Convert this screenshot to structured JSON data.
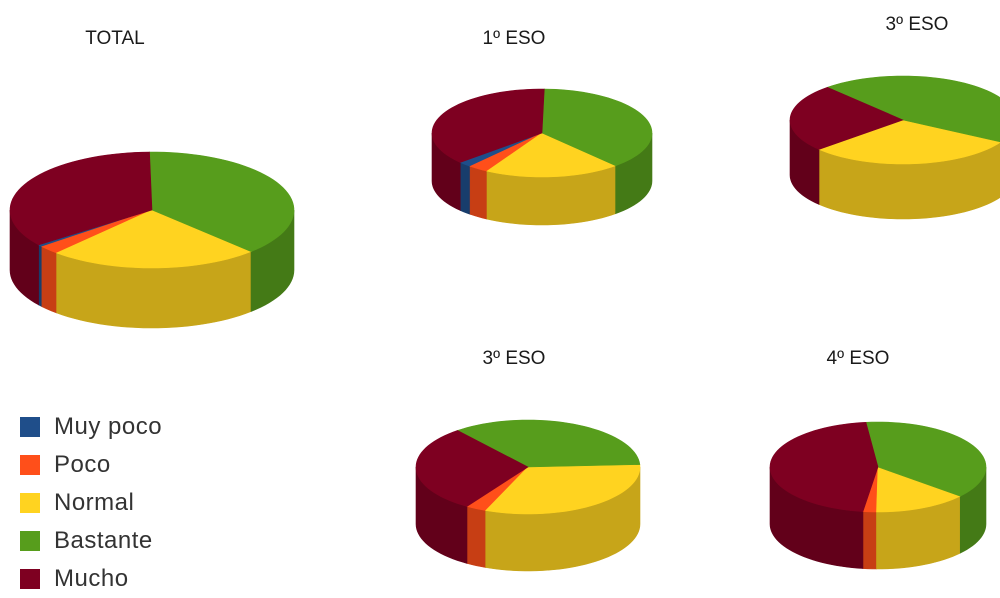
{
  "chart_data": [
    {
      "type": "pie",
      "title": "TOTAL",
      "categories": [
        "Muy poco",
        "Poco",
        "Normal",
        "Bastante",
        "Mucho"
      ],
      "values": [
        0.6,
        2.4,
        24.0,
        38.0,
        35.0
      ]
    },
    {
      "type": "pie",
      "title": "1º ESO",
      "categories": [
        "Muy poco",
        "Poco",
        "Normal",
        "Bastante",
        "Mucho"
      ],
      "values": [
        2.0,
        3.0,
        20.0,
        38.0,
        37.0
      ]
    },
    {
      "type": "pie",
      "title": "3º ESO",
      "categories": [
        "Muy poco",
        "Poco",
        "Normal",
        "Bastante",
        "Mucho"
      ],
      "values": [
        0,
        0,
        30.0,
        45.0,
        25.0
      ]
    },
    {
      "type": "pie",
      "title": "3º ESO",
      "categories": [
        "Muy poco",
        "Poco",
        "Normal",
        "Bastante",
        "Mucho"
      ],
      "values": [
        0,
        3.0,
        32.0,
        35.0,
        30.0
      ]
    },
    {
      "type": "pie",
      "title": "4º ESO",
      "categories": [
        "Muy poco",
        "Poco",
        "Normal",
        "Bastante",
        "Mucho"
      ],
      "values": [
        0,
        2.0,
        14.0,
        38.0,
        46.0
      ]
    }
  ],
  "legend": {
    "placement": "bottom-left",
    "items": [
      {
        "label": "Muy poco",
        "color": "#1f4e8a"
      },
      {
        "label": "Poco",
        "color": "#ff4f1a"
      },
      {
        "label": "Normal",
        "color": "#ffd320"
      },
      {
        "label": "Bastante",
        "color": "#579d1c"
      },
      {
        "label": "Mucho",
        "color": "#7e0021"
      }
    ]
  }
}
